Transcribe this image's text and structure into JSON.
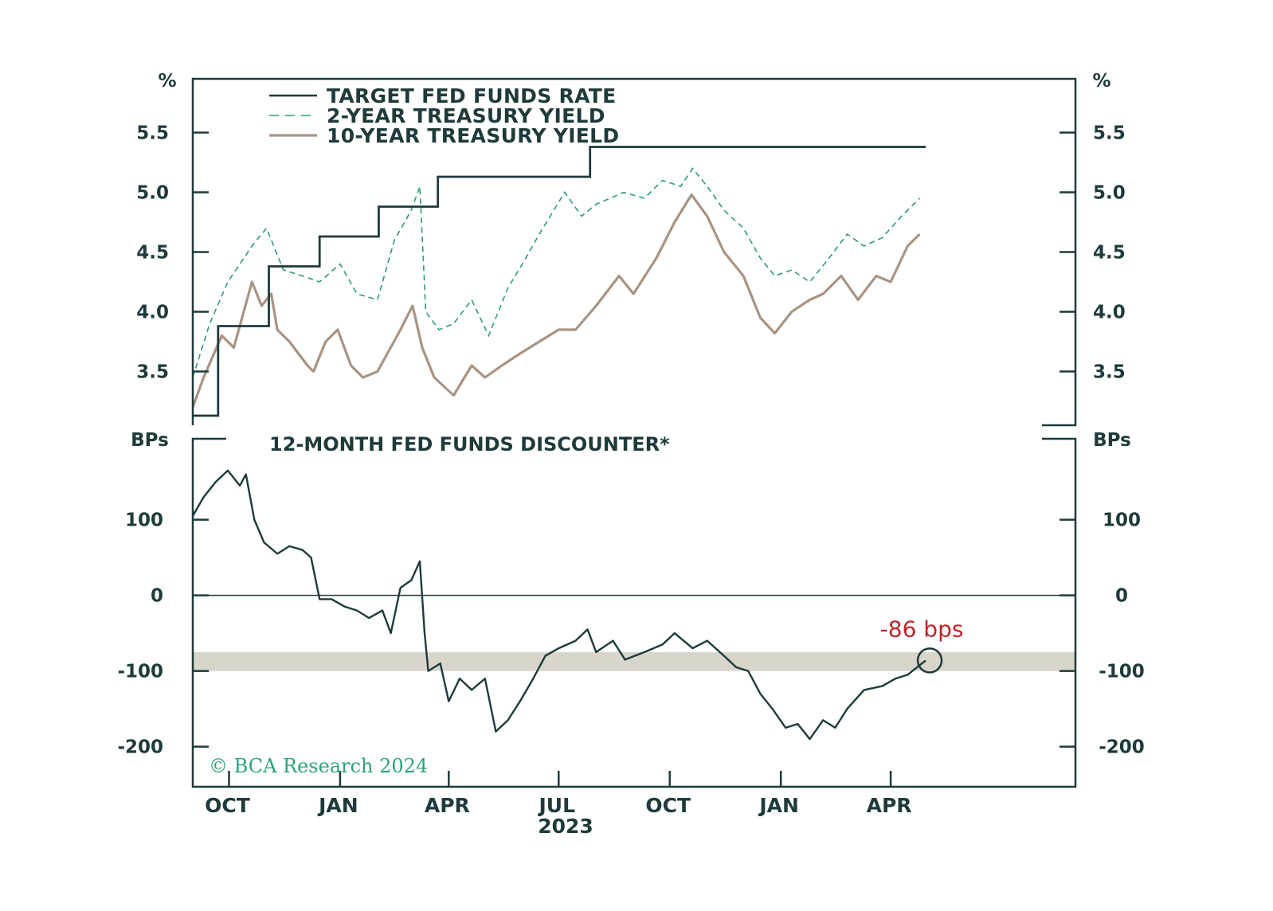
{
  "chart_data": [
    {
      "type": "line",
      "ylabel": "%",
      "ylim": [
        3.05,
        5.95
      ],
      "yticks": [
        3.5,
        4.0,
        4.5,
        5.0,
        5.5
      ],
      "ytick_labels": [
        "3.5",
        "4.0",
        "4.5",
        "5.0",
        "5.5"
      ],
      "legend_position": "top-left",
      "series": [
        {
          "name": "TARGET FED FUNDS RATE",
          "color": "#1f3a3a",
          "style": "step",
          "points": [
            [
              "2022-09-01",
              3.13
            ],
            [
              "2022-09-22",
              3.13
            ],
            [
              "2022-09-22",
              3.88
            ],
            [
              "2022-11-03",
              3.88
            ],
            [
              "2022-11-03",
              4.38
            ],
            [
              "2022-12-15",
              4.38
            ],
            [
              "2022-12-15",
              4.63
            ],
            [
              "2023-02-02",
              4.63
            ],
            [
              "2023-02-02",
              4.88
            ],
            [
              "2023-03-23",
              4.88
            ],
            [
              "2023-03-23",
              5.13
            ],
            [
              "2023-05-04",
              5.13
            ],
            [
              "2023-05-04",
              5.13
            ],
            [
              "2023-07-27",
              5.13
            ],
            [
              "2023-07-27",
              5.38
            ],
            [
              "2024-04-30",
              5.38
            ]
          ]
        },
        {
          "name": "2-YEAR TREASURY YIELD",
          "color": "#2e9b74",
          "style": "dashed",
          "points": [
            [
              "2022-09-01",
              3.45
            ],
            [
              "2022-09-15",
              3.9
            ],
            [
              "2022-09-30",
              4.25
            ],
            [
              "2022-10-20",
              4.55
            ],
            [
              "2022-11-01",
              4.7
            ],
            [
              "2022-11-15",
              4.35
            ],
            [
              "2022-12-01",
              4.3
            ],
            [
              "2022-12-15",
              4.25
            ],
            [
              "2023-01-01",
              4.4
            ],
            [
              "2023-01-15",
              4.15
            ],
            [
              "2023-02-01",
              4.1
            ],
            [
              "2023-02-15",
              4.6
            ],
            [
              "2023-03-01",
              4.85
            ],
            [
              "2023-03-08",
              5.05
            ],
            [
              "2023-03-13",
              4.0
            ],
            [
              "2023-03-24",
              3.85
            ],
            [
              "2023-04-05",
              3.9
            ],
            [
              "2023-04-20",
              4.1
            ],
            [
              "2023-05-04",
              3.8
            ],
            [
              "2023-05-20",
              4.2
            ],
            [
              "2023-06-01",
              4.4
            ],
            [
              "2023-06-15",
              4.65
            ],
            [
              "2023-07-06",
              5.0
            ],
            [
              "2023-07-20",
              4.8
            ],
            [
              "2023-08-01",
              4.9
            ],
            [
              "2023-08-24",
              5.0
            ],
            [
              "2023-09-10",
              4.95
            ],
            [
              "2023-09-25",
              5.1
            ],
            [
              "2023-10-10",
              5.05
            ],
            [
              "2023-10-20",
              5.2
            ],
            [
              "2023-11-01",
              5.05
            ],
            [
              "2023-11-15",
              4.85
            ],
            [
              "2023-12-01",
              4.7
            ],
            [
              "2023-12-15",
              4.45
            ],
            [
              "2023-12-27",
              4.3
            ],
            [
              "2024-01-10",
              4.35
            ],
            [
              "2024-01-25",
              4.25
            ],
            [
              "2024-02-10",
              4.45
            ],
            [
              "2024-02-25",
              4.65
            ],
            [
              "2024-03-10",
              4.55
            ],
            [
              "2024-03-25",
              4.62
            ],
            [
              "2024-04-10",
              4.8
            ],
            [
              "2024-04-25",
              4.95
            ]
          ]
        },
        {
          "name": "10-YEAR TREASURY YIELD",
          "color": "#a89484",
          "style": "solid",
          "points": [
            [
              "2022-09-01",
              3.2
            ],
            [
              "2022-09-10",
              3.45
            ],
            [
              "2022-09-25",
              3.8
            ],
            [
              "2022-10-05",
              3.7
            ],
            [
              "2022-10-20",
              4.25
            ],
            [
              "2022-10-28",
              4.05
            ],
            [
              "2022-11-05",
              4.15
            ],
            [
              "2022-11-10",
              3.85
            ],
            [
              "2022-11-20",
              3.75
            ],
            [
              "2022-12-05",
              3.55
            ],
            [
              "2022-12-10",
              3.5
            ],
            [
              "2022-12-20",
              3.75
            ],
            [
              "2022-12-30",
              3.85
            ],
            [
              "2023-01-10",
              3.55
            ],
            [
              "2023-01-20",
              3.45
            ],
            [
              "2023-02-01",
              3.5
            ],
            [
              "2023-02-20",
              3.85
            ],
            [
              "2023-03-02",
              4.05
            ],
            [
              "2023-03-10",
              3.7
            ],
            [
              "2023-03-20",
              3.45
            ],
            [
              "2023-04-05",
              3.3
            ],
            [
              "2023-04-20",
              3.55
            ],
            [
              "2023-05-01",
              3.45
            ],
            [
              "2023-05-15",
              3.55
            ],
            [
              "2023-05-30",
              3.65
            ],
            [
              "2023-06-15",
              3.75
            ],
            [
              "2023-07-01",
              3.85
            ],
            [
              "2023-07-15",
              3.85
            ],
            [
              "2023-08-01",
              4.05
            ],
            [
              "2023-08-20",
              4.3
            ],
            [
              "2023-09-01",
              4.15
            ],
            [
              "2023-09-20",
              4.45
            ],
            [
              "2023-10-05",
              4.75
            ],
            [
              "2023-10-19",
              4.98
            ],
            [
              "2023-11-01",
              4.8
            ],
            [
              "2023-11-15",
              4.5
            ],
            [
              "2023-12-01",
              4.3
            ],
            [
              "2023-12-15",
              3.95
            ],
            [
              "2023-12-27",
              3.82
            ],
            [
              "2024-01-10",
              4.0
            ],
            [
              "2024-01-25",
              4.1
            ],
            [
              "2024-02-05",
              4.15
            ],
            [
              "2024-02-20",
              4.3
            ],
            [
              "2024-03-05",
              4.1
            ],
            [
              "2024-03-20",
              4.3
            ],
            [
              "2024-04-01",
              4.25
            ],
            [
              "2024-04-15",
              4.55
            ],
            [
              "2024-04-25",
              4.65
            ]
          ]
        }
      ]
    },
    {
      "type": "line",
      "title": "12-MONTH FED FUNDS DISCOUNTER*",
      "ylabel": "BPs",
      "ylim": [
        -253,
        207
      ],
      "yticks": [
        -200,
        -100,
        0,
        100
      ],
      "ytick_labels": [
        "-200",
        "-100",
        "0",
        "100"
      ],
      "xticks": [
        "2022-10-01",
        "2023-01-01",
        "2023-04-01",
        "2023-07-01",
        "2023-10-01",
        "2024-01-01",
        "2024-04-01"
      ],
      "xtick_labels": [
        "OCT",
        "JAN",
        "APR",
        "JUL",
        "OCT",
        "JAN",
        "APR"
      ],
      "xlabel": "2023",
      "shaded_band": [
        -100,
        -75
      ],
      "annotation": {
        "text": "-86 bps",
        "date": "2024-04-30",
        "value": -86,
        "color": "#c0232a"
      },
      "series": [
        {
          "name": "12-MONTH FED FUNDS DISCOUNTER*",
          "color": "#1f3a3a",
          "points": [
            [
              "2022-09-01",
              105
            ],
            [
              "2022-09-10",
              130
            ],
            [
              "2022-09-20",
              150
            ],
            [
              "2022-09-30",
              165
            ],
            [
              "2022-10-10",
              145
            ],
            [
              "2022-10-15",
              160
            ],
            [
              "2022-10-22",
              100
            ],
            [
              "2022-10-30",
              70
            ],
            [
              "2022-11-10",
              55
            ],
            [
              "2022-11-20",
              65
            ],
            [
              "2022-12-01",
              60
            ],
            [
              "2022-12-08",
              50
            ],
            [
              "2022-12-15",
              -5
            ],
            [
              "2022-12-25",
              -5
            ],
            [
              "2023-01-05",
              -15
            ],
            [
              "2023-01-15",
              -20
            ],
            [
              "2023-01-25",
              -30
            ],
            [
              "2023-02-05",
              -20
            ],
            [
              "2023-02-12",
              -50
            ],
            [
              "2023-02-20",
              10
            ],
            [
              "2023-03-01",
              20
            ],
            [
              "2023-03-08",
              45
            ],
            [
              "2023-03-12",
              -50
            ],
            [
              "2023-03-15",
              -100
            ],
            [
              "2023-03-25",
              -90
            ],
            [
              "2023-04-01",
              -140
            ],
            [
              "2023-04-10",
              -110
            ],
            [
              "2023-04-20",
              -125
            ],
            [
              "2023-05-01",
              -110
            ],
            [
              "2023-05-10",
              -180
            ],
            [
              "2023-05-20",
              -165
            ],
            [
              "2023-05-30",
              -140
            ],
            [
              "2023-06-10",
              -110
            ],
            [
              "2023-06-20",
              -80
            ],
            [
              "2023-07-01",
              -70
            ],
            [
              "2023-07-15",
              -60
            ],
            [
              "2023-07-25",
              -45
            ],
            [
              "2023-08-01",
              -75
            ],
            [
              "2023-08-15",
              -60
            ],
            [
              "2023-08-25",
              -85
            ],
            [
              "2023-09-10",
              -75
            ],
            [
              "2023-09-25",
              -65
            ],
            [
              "2023-10-05",
              -50
            ],
            [
              "2023-10-20",
              -70
            ],
            [
              "2023-11-01",
              -60
            ],
            [
              "2023-11-15",
              -80
            ],
            [
              "2023-11-25",
              -95
            ],
            [
              "2023-12-05",
              -100
            ],
            [
              "2023-12-15",
              -130
            ],
            [
              "2023-12-25",
              -150
            ],
            [
              "2024-01-05",
              -175
            ],
            [
              "2024-01-15",
              -170
            ],
            [
              "2024-01-25",
              -190
            ],
            [
              "2024-02-05",
              -165
            ],
            [
              "2024-02-15",
              -175
            ],
            [
              "2024-02-25",
              -150
            ],
            [
              "2024-03-10",
              -125
            ],
            [
              "2024-03-25",
              -120
            ],
            [
              "2024-04-05",
              -110
            ],
            [
              "2024-04-15",
              -105
            ],
            [
              "2024-04-30",
              -86
            ]
          ]
        }
      ]
    }
  ],
  "copyright": "© BCA Research 2024"
}
